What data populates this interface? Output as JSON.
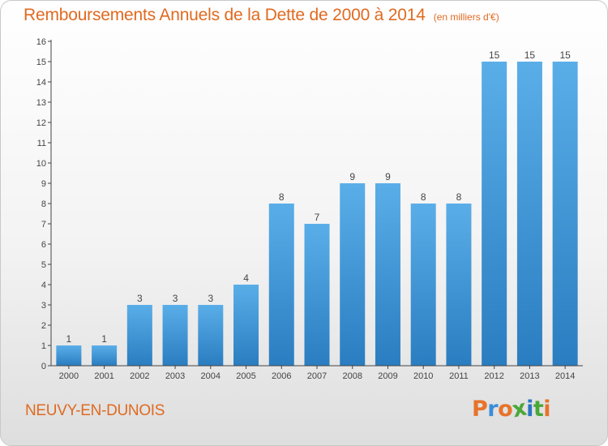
{
  "title": "Remboursements Annuels de la Dette de 2000 à 2014",
  "unit_note": "(en milliers d'€)",
  "commune": "NEUVY-EN-DUNOIS",
  "logo_text": "Proxiti",
  "colors": {
    "title": "#e06a20",
    "bar_top": "#5aaee8",
    "bar_bottom": "#2a7dc0",
    "logo": [
      "#e8732a",
      "#3a8ed6",
      "#e8732a",
      "#4aa83a",
      "#2d74c4",
      "#4aa83a",
      "#e8732a"
    ]
  },
  "chart_data": {
    "type": "bar",
    "title": "Remboursements Annuels de la Dette de 2000 à 2014",
    "subtitle": "(en milliers d'€)",
    "categories": [
      "2000",
      "2001",
      "2002",
      "2003",
      "2004",
      "2005",
      "2006",
      "2007",
      "2008",
      "2009",
      "2010",
      "2011",
      "2012",
      "2013",
      "2014"
    ],
    "values": [
      1,
      1,
      3,
      3,
      3,
      4,
      8,
      7,
      9,
      9,
      8,
      8,
      15,
      15,
      15
    ],
    "data_labels": [
      "1",
      "1",
      "3",
      "3",
      "3",
      "4",
      "8",
      "7",
      "9",
      "9",
      "8",
      "8",
      "15",
      "15",
      "15"
    ],
    "yticks": [
      "0",
      "1",
      "2",
      "3",
      "4",
      "5",
      "6",
      "7",
      "8",
      "9",
      "10",
      "11",
      "12",
      "13",
      "14",
      "15",
      "16"
    ],
    "ylim": [
      0,
      16
    ],
    "xlabel": "",
    "ylabel": "",
    "grid": false,
    "legend": "none"
  }
}
